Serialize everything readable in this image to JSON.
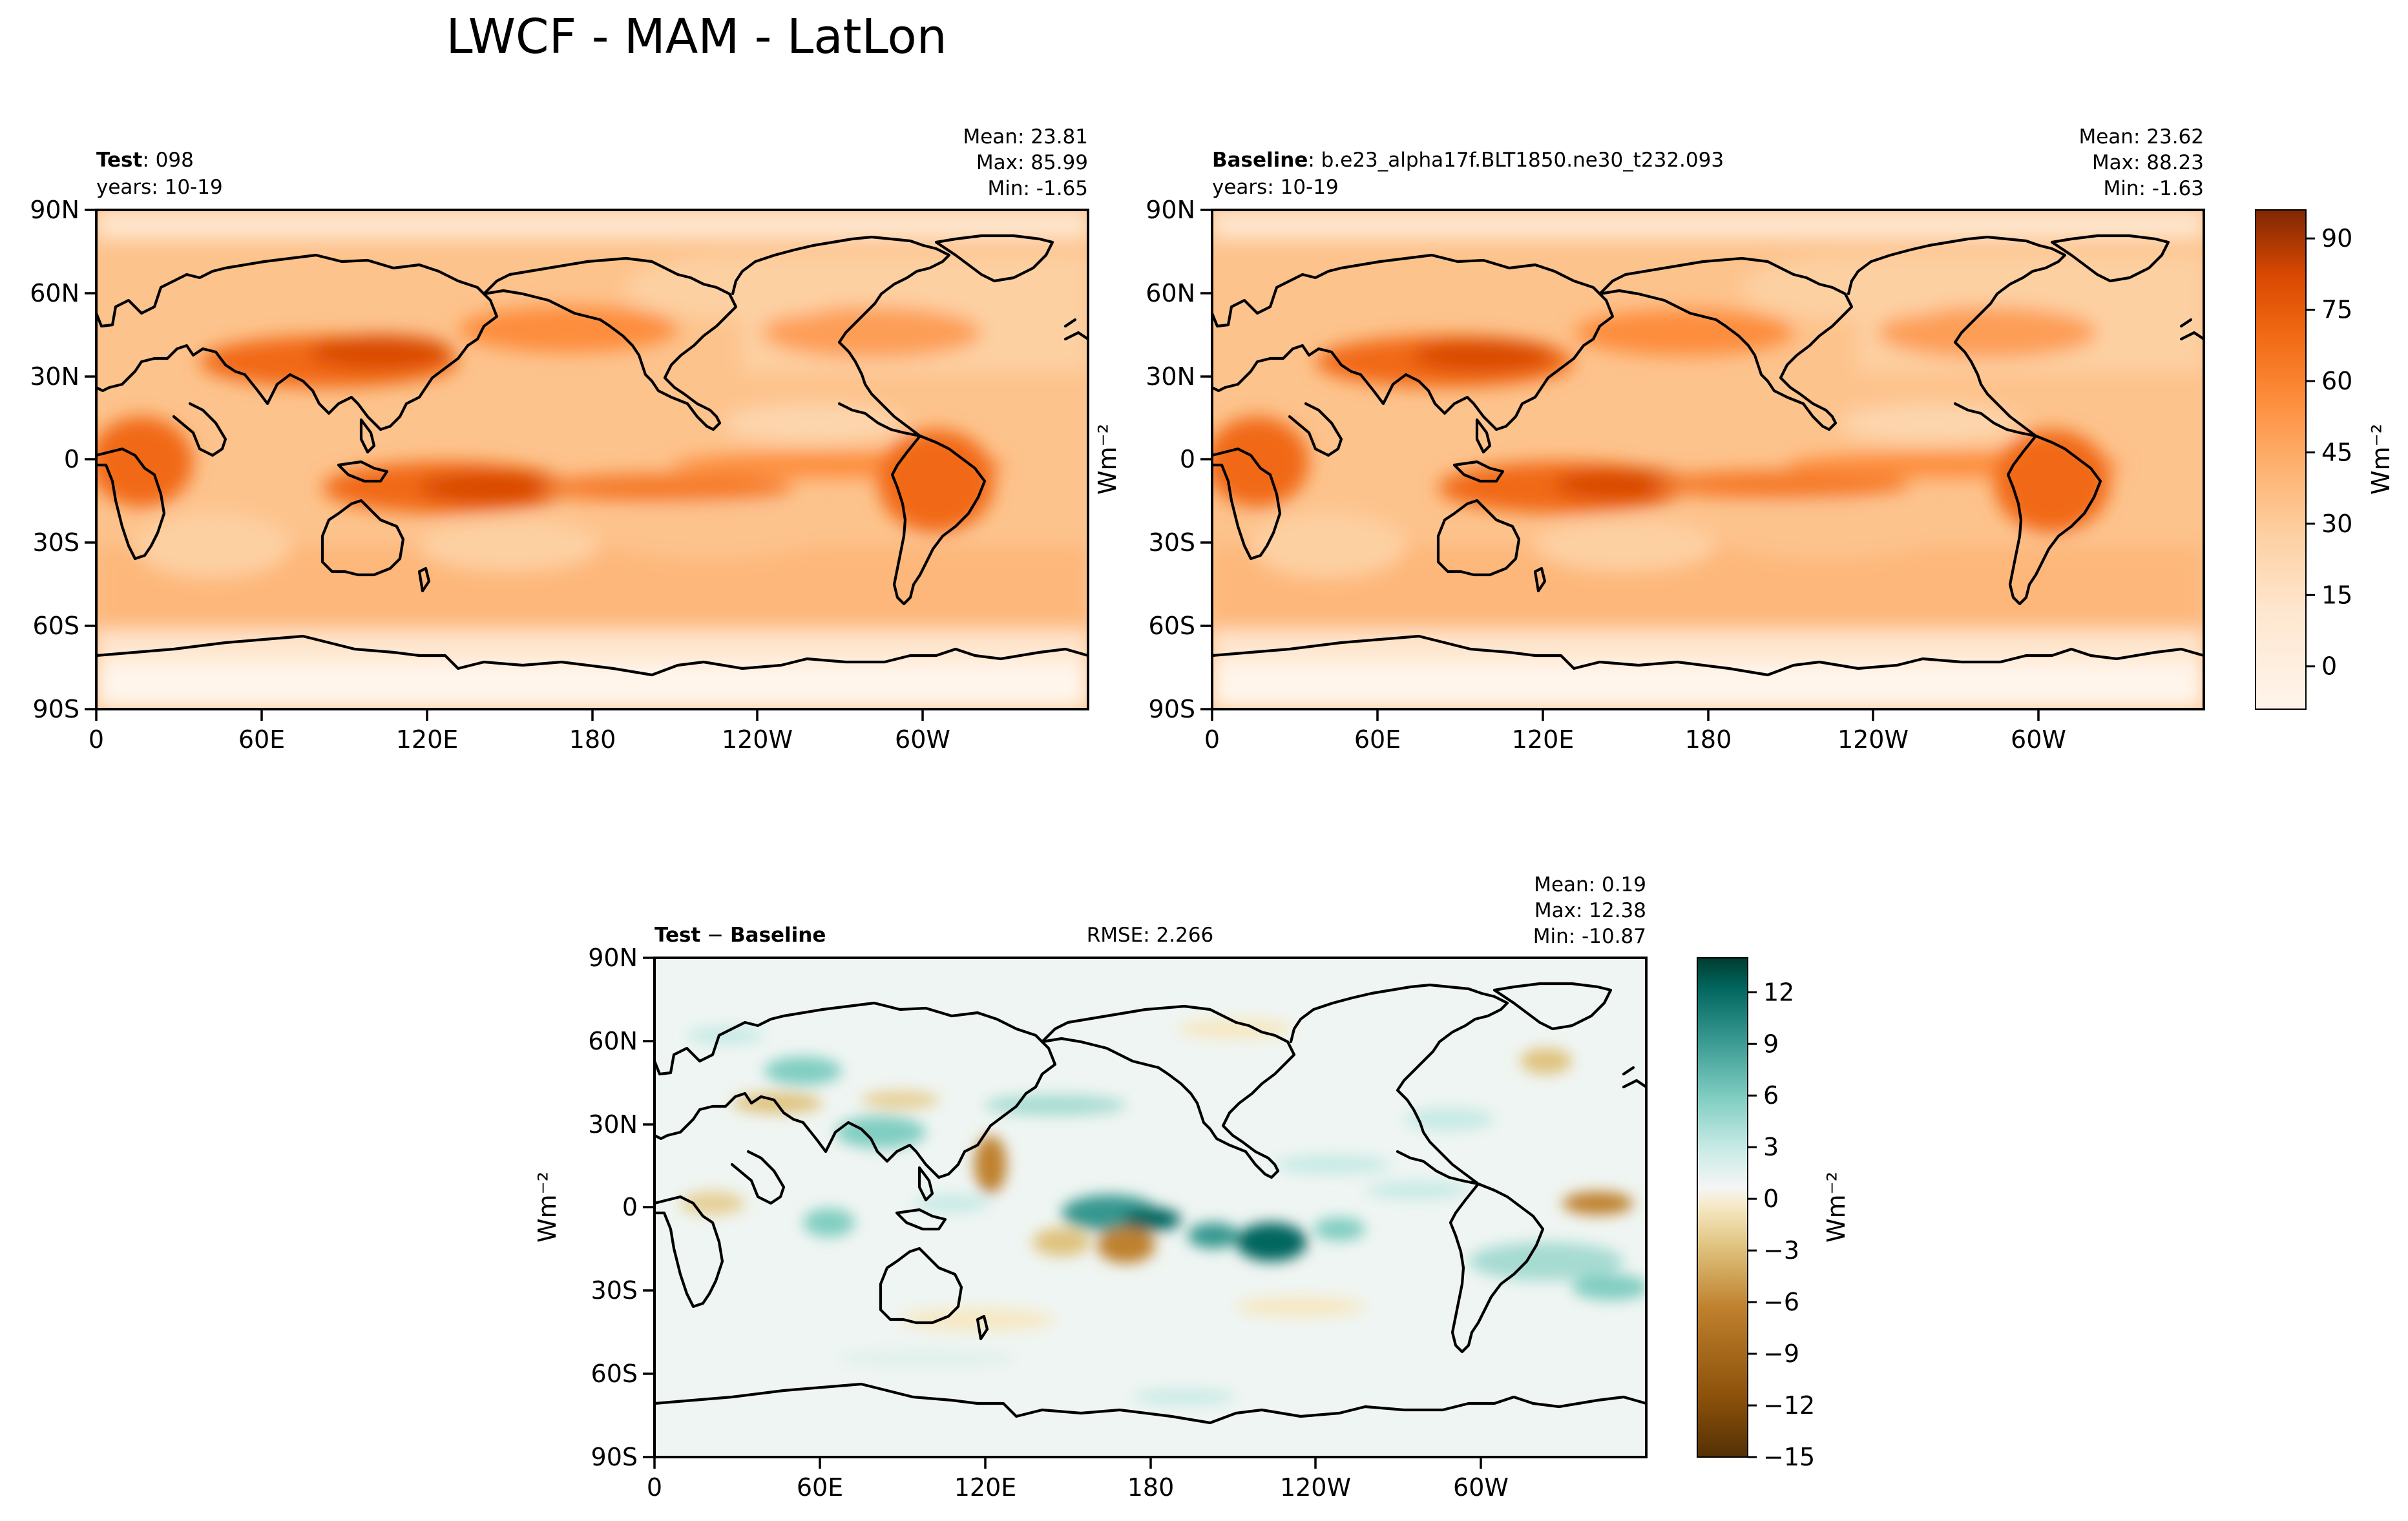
{
  "figure": {
    "title": "LWCF - MAM - LatLon"
  },
  "chart_data": [
    {
      "type": "heatmap",
      "panel": "test",
      "label_bold": "Test",
      "label_rest": ": 098",
      "years": "years: 10-19",
      "stats": {
        "mean": "Mean: 23.81",
        "max": "Max: 85.99",
        "min": "Min: -1.65"
      },
      "x_ticks": [
        "0",
        "60E",
        "120E",
        "180",
        "120W",
        "60W"
      ],
      "y_ticks": [
        "90N",
        "60N",
        "30N",
        "0",
        "30S",
        "60S",
        "90S"
      ],
      "ylabel": "Wm⁻²",
      "xlim": [
        0,
        360
      ],
      "ylim": [
        -90,
        90
      ],
      "colormap": "Oranges",
      "field_summary": {
        "mean": 23.81,
        "max": 85.99,
        "min": -1.65
      }
    },
    {
      "type": "heatmap",
      "panel": "baseline",
      "label_bold": "Baseline",
      "label_rest": ": b.e23_alpha17f.BLT1850.ne30_t232.093",
      "years": "years: 10-19",
      "stats": {
        "mean": "Mean: 23.62",
        "max": "Max: 88.23",
        "min": "Min: -1.63"
      },
      "x_ticks": [
        "0",
        "60E",
        "120E",
        "180",
        "120W",
        "60W"
      ],
      "y_ticks": [
        "90N",
        "60N",
        "30N",
        "0",
        "30S",
        "60S",
        "90S"
      ],
      "xlim": [
        0,
        360
      ],
      "ylim": [
        -90,
        90
      ],
      "colormap": "Oranges",
      "field_summary": {
        "mean": 23.62,
        "max": 88.23,
        "min": -1.63
      },
      "colorbar": {
        "ticks": [
          "90",
          "75",
          "60",
          "45",
          "30",
          "15",
          "0"
        ],
        "tick_values": [
          90,
          75,
          60,
          45,
          30,
          15,
          0
        ],
        "range": [
          -9,
          96
        ],
        "label": "Wm⁻²"
      }
    },
    {
      "type": "heatmap",
      "panel": "difference",
      "label_bold": "Test",
      "label_op": " − ",
      "label_bold2": "Baseline",
      "rmse": "RMSE: 2.266",
      "stats": {
        "mean": "Mean:  0.19",
        "max": "Max: 12.38",
        "min": "Min: -10.87"
      },
      "x_ticks": [
        "0",
        "60E",
        "120E",
        "180",
        "120W",
        "60W"
      ],
      "y_ticks": [
        "90N",
        "60N",
        "30N",
        "0",
        "30S",
        "60S",
        "90S"
      ],
      "ylabel": "Wm⁻²",
      "xlim": [
        0,
        360
      ],
      "ylim": [
        -90,
        90
      ],
      "colormap": "BrBG",
      "field_summary": {
        "mean": 0.19,
        "max": 12.38,
        "min": -10.87,
        "rmse": 2.266
      },
      "colorbar": {
        "ticks": [
          "12",
          "9",
          "6",
          "3",
          "0",
          "−3",
          "−6",
          "−9",
          "−12",
          "−15"
        ],
        "tick_values": [
          12,
          9,
          6,
          3,
          0,
          -3,
          -6,
          -9,
          -12,
          -15
        ],
        "range": [
          -15,
          14
        ],
        "label": "Wm⁻²"
      }
    }
  ],
  "colors": {
    "oranges": [
      "#fff5eb",
      "#fee6ce",
      "#fdd0a2",
      "#fdae6b",
      "#fd8d3c",
      "#f16913",
      "#d94801",
      "#a63603",
      "#7f2704"
    ],
    "brbg": [
      "#543005",
      "#8c510a",
      "#bf812d",
      "#dfc27d",
      "#f6e8c3",
      "#f5f5f5",
      "#c7eae5",
      "#80cdc1",
      "#35978f",
      "#01665e",
      "#003c30"
    ]
  }
}
